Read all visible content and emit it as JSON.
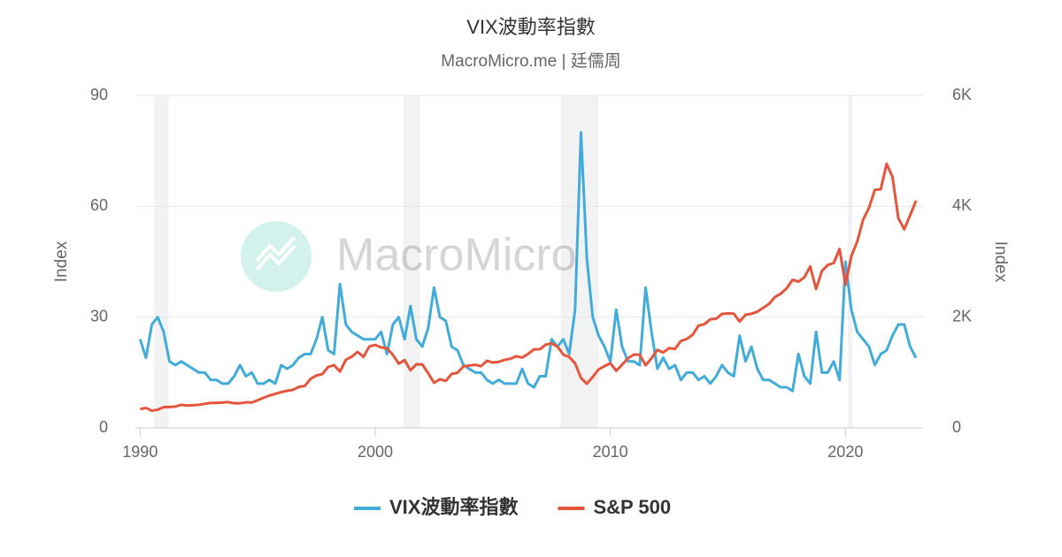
{
  "chart_data": {
    "type": "line",
    "title": "VIX波動率指數",
    "subtitle": "MacroMicro.me | 廷儒周",
    "watermark": "MacroMicro",
    "y_label": "Index",
    "y2_label": "Index",
    "xlim": [
      1989.8,
      2023.3
    ],
    "xticks": [
      1990,
      2000,
      2010,
      2020
    ],
    "ylim": [
      0,
      90
    ],
    "yticks": [
      0,
      30,
      60,
      90
    ],
    "y2lim": [
      0,
      6000
    ],
    "y2ticks": [
      {
        "value": 0,
        "label": "0"
      },
      {
        "value": 2000,
        "label": "2K"
      },
      {
        "value": 4000,
        "label": "4K"
      },
      {
        "value": 6000,
        "label": "6K"
      }
    ],
    "grid": true,
    "legend": "bottom",
    "bands": [
      [
        1990.6,
        1991.2
      ],
      [
        2001.2,
        2001.9
      ],
      [
        2007.9,
        2009.5
      ],
      [
        2020.1,
        2020.3
      ]
    ],
    "x": [
      1990,
      1990.25,
      1990.5,
      1990.75,
      1991,
      1991.25,
      1991.5,
      1991.75,
      1992,
      1992.25,
      1992.5,
      1992.75,
      1993,
      1993.25,
      1993.5,
      1993.75,
      1994,
      1994.25,
      1994.5,
      1994.75,
      1995,
      1995.25,
      1995.5,
      1995.75,
      1996,
      1996.25,
      1996.5,
      1996.75,
      1997,
      1997.25,
      1997.5,
      1997.75,
      1998,
      1998.25,
      1998.5,
      1998.75,
      1999,
      1999.25,
      1999.5,
      1999.75,
      2000,
      2000.25,
      2000.5,
      2000.75,
      2001,
      2001.25,
      2001.5,
      2001.75,
      2002,
      2002.25,
      2002.5,
      2002.75,
      2003,
      2003.25,
      2003.5,
      2003.75,
      2004,
      2004.25,
      2004.5,
      2004.75,
      2005,
      2005.25,
      2005.5,
      2005.75,
      2006,
      2006.25,
      2006.5,
      2006.75,
      2007,
      2007.25,
      2007.5,
      2007.75,
      2008,
      2008.25,
      2008.5,
      2008.75,
      2009,
      2009.25,
      2009.5,
      2009.75,
      2010,
      2010.25,
      2010.5,
      2010.75,
      2011,
      2011.25,
      2011.5,
      2011.75,
      2012,
      2012.25,
      2012.5,
      2012.75,
      2013,
      2013.25,
      2013.5,
      2013.75,
      2014,
      2014.25,
      2014.5,
      2014.75,
      2015,
      2015.25,
      2015.5,
      2015.75,
      2016,
      2016.25,
      2016.5,
      2016.75,
      2017,
      2017.25,
      2017.5,
      2017.75,
      2018,
      2018.25,
      2018.5,
      2018.75,
      2019,
      2019.25,
      2019.5,
      2019.75,
      2020,
      2020.25,
      2020.5,
      2020.75,
      2021,
      2021.25,
      2021.5,
      2021.75,
      2022,
      2022.25,
      2022.5,
      2022.75,
      2023
    ],
    "series": [
      {
        "name": "VIX波動率指數",
        "color": "#41acd9",
        "axis": "y",
        "values": [
          24,
          19,
          28,
          30,
          26,
          18,
          17,
          18,
          17,
          16,
          15,
          15,
          13,
          13,
          12,
          12,
          14,
          17,
          14,
          15,
          12,
          12,
          13,
          12,
          17,
          16,
          17,
          19,
          20,
          20,
          24,
          30,
          21,
          20,
          39,
          28,
          26,
          25,
          24,
          24,
          24,
          26,
          20,
          28,
          30,
          24,
          33,
          24,
          22,
          27,
          38,
          30,
          29,
          22,
          21,
          17,
          16,
          15,
          15,
          13,
          12,
          13,
          12,
          12,
          12,
          16,
          12,
          11,
          14,
          14,
          24,
          22,
          24,
          20,
          32,
          80,
          46,
          30,
          25,
          22,
          18,
          32,
          22,
          18,
          18,
          17,
          38,
          26,
          16,
          19,
          16,
          17,
          13,
          15,
          15,
          13,
          14,
          12,
          14,
          17,
          15,
          14,
          25,
          18,
          22,
          16,
          13,
          13,
          12,
          11,
          11,
          10,
          20,
          14,
          12,
          26,
          15,
          15,
          18,
          13,
          45,
          32,
          26,
          24,
          22,
          17,
          20,
          21,
          25,
          28,
          28,
          22,
          19
        ]
      },
      {
        "name": "S&P 500",
        "color": "#e5553b",
        "axis": "y2",
        "values": [
          340,
          360,
          310,
          330,
          375,
          380,
          385,
          417,
          404,
          408,
          418,
          435,
          451,
          450,
          458,
          466,
          445,
          444,
          462,
          459,
          500,
          545,
          584,
          615,
          645,
          670,
          687,
          740,
          757,
          885,
          947,
          970,
          1101,
          1133,
          1017,
          1229,
          1286,
          1372,
          1282,
          1469,
          1498,
          1454,
          1436,
          1320,
          1160,
          1224,
          1040,
          1148,
          1147,
          989,
          815,
          879,
          848,
          974,
          995,
          1111,
          1126,
          1140,
          1114,
          1211,
          1180,
          1191,
          1228,
          1248,
          1294,
          1270,
          1335,
          1418,
          1420,
          1503,
          1526,
          1468,
          1322,
          1280,
          1166,
          903,
          797,
          919,
          1057,
          1115,
          1169,
          1030,
          1141,
          1257,
          1325,
          1320,
          1131,
          1257,
          1408,
          1362,
          1440,
          1426,
          1569,
          1606,
          1681,
          1848,
          1872,
          1960,
          1972,
          2058,
          2067,
          2063,
          1920,
          2043,
          2059,
          2098,
          2168,
          2238,
          2362,
          2423,
          2519,
          2673,
          2640,
          2718,
          2913,
          2506,
          2834,
          2941,
          2976,
          3230,
          2584,
          3100,
          3363,
          3756,
          3972,
          4297,
          4307,
          4766,
          4530,
          3785,
          3585,
          3839,
          4100
        ]
      }
    ]
  }
}
